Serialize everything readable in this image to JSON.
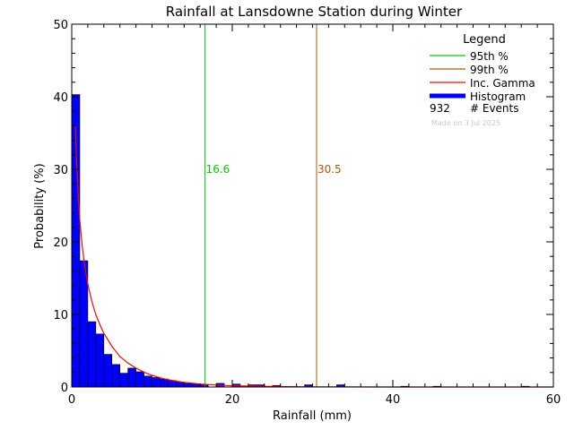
{
  "chart_data": {
    "type": "bar",
    "title": "Rainfall at Lansdowne Station during Winter",
    "xlabel": "Rainfall (mm)",
    "ylabel": "Probability (%)",
    "xlim": [
      0,
      60
    ],
    "ylim": [
      0,
      50
    ],
    "x_ticks": [
      0,
      20,
      40,
      60
    ],
    "y_ticks": [
      0,
      10,
      20,
      30,
      40,
      50
    ],
    "bin_width": 1,
    "histogram": {
      "name": "Histogram",
      "color": "#0000ff",
      "bin_starts": [
        0,
        1,
        2,
        3,
        4,
        5,
        6,
        7,
        8,
        9,
        10,
        11,
        12,
        13,
        14,
        15,
        16,
        18,
        20,
        22,
        23,
        25,
        29,
        33,
        41,
        45,
        56
      ],
      "values": [
        40.3,
        17.4,
        9.0,
        7.3,
        4.5,
        3.1,
        1.9,
        2.6,
        2.1,
        1.5,
        1.3,
        1.1,
        0.9,
        0.7,
        0.5,
        0.4,
        0.3,
        0.5,
        0.4,
        0.3,
        0.3,
        0.2,
        0.3,
        0.3,
        0.1,
        0.1,
        0.1
      ]
    },
    "gamma_curve": {
      "name": "Inc. Gamma",
      "color": "#ff0000",
      "x": [
        0.45,
        0.6,
        0.8,
        1.0,
        1.3,
        1.6,
        2.0,
        2.5,
        3.0,
        3.5,
        4.0,
        5.0,
        6.0,
        7.0,
        8.0,
        9.0,
        10.0,
        11.0,
        12.0,
        13.0,
        14.0,
        16.0,
        18.0,
        20.0,
        25.0,
        30.0,
        40.0,
        60.0
      ],
      "y": [
        36.0,
        31.0,
        26.5,
        23.0,
        19.5,
        16.8,
        14.2,
        11.8,
        10.0,
        8.6,
        7.4,
        5.6,
        4.2,
        3.3,
        2.6,
        2.05,
        1.6,
        1.28,
        1.0,
        0.8,
        0.64,
        0.41,
        0.27,
        0.17,
        0.06,
        0.02,
        0.003,
        0.0
      ]
    },
    "percentile_lines": [
      {
        "name": "95th %",
        "x": 16.6,
        "label": "16.6",
        "color": "#00cc00"
      },
      {
        "name": "99th %",
        "x": 30.5,
        "label": "30.5",
        "color": "#b35900"
      }
    ],
    "legend": {
      "title": "Legend",
      "placement": "top-right",
      "entries": [
        {
          "label": "95th %",
          "color": "#00cc00"
        },
        {
          "label": "99th %",
          "color": "#b35900"
        },
        {
          "label": "Inc. Gamma",
          "color": "#ff0000"
        },
        {
          "label": "Histogram",
          "color": "#0000ff"
        }
      ],
      "events_count": "932",
      "events_label": "# Events",
      "made_on": "Made on 3 Jul 2025"
    }
  }
}
